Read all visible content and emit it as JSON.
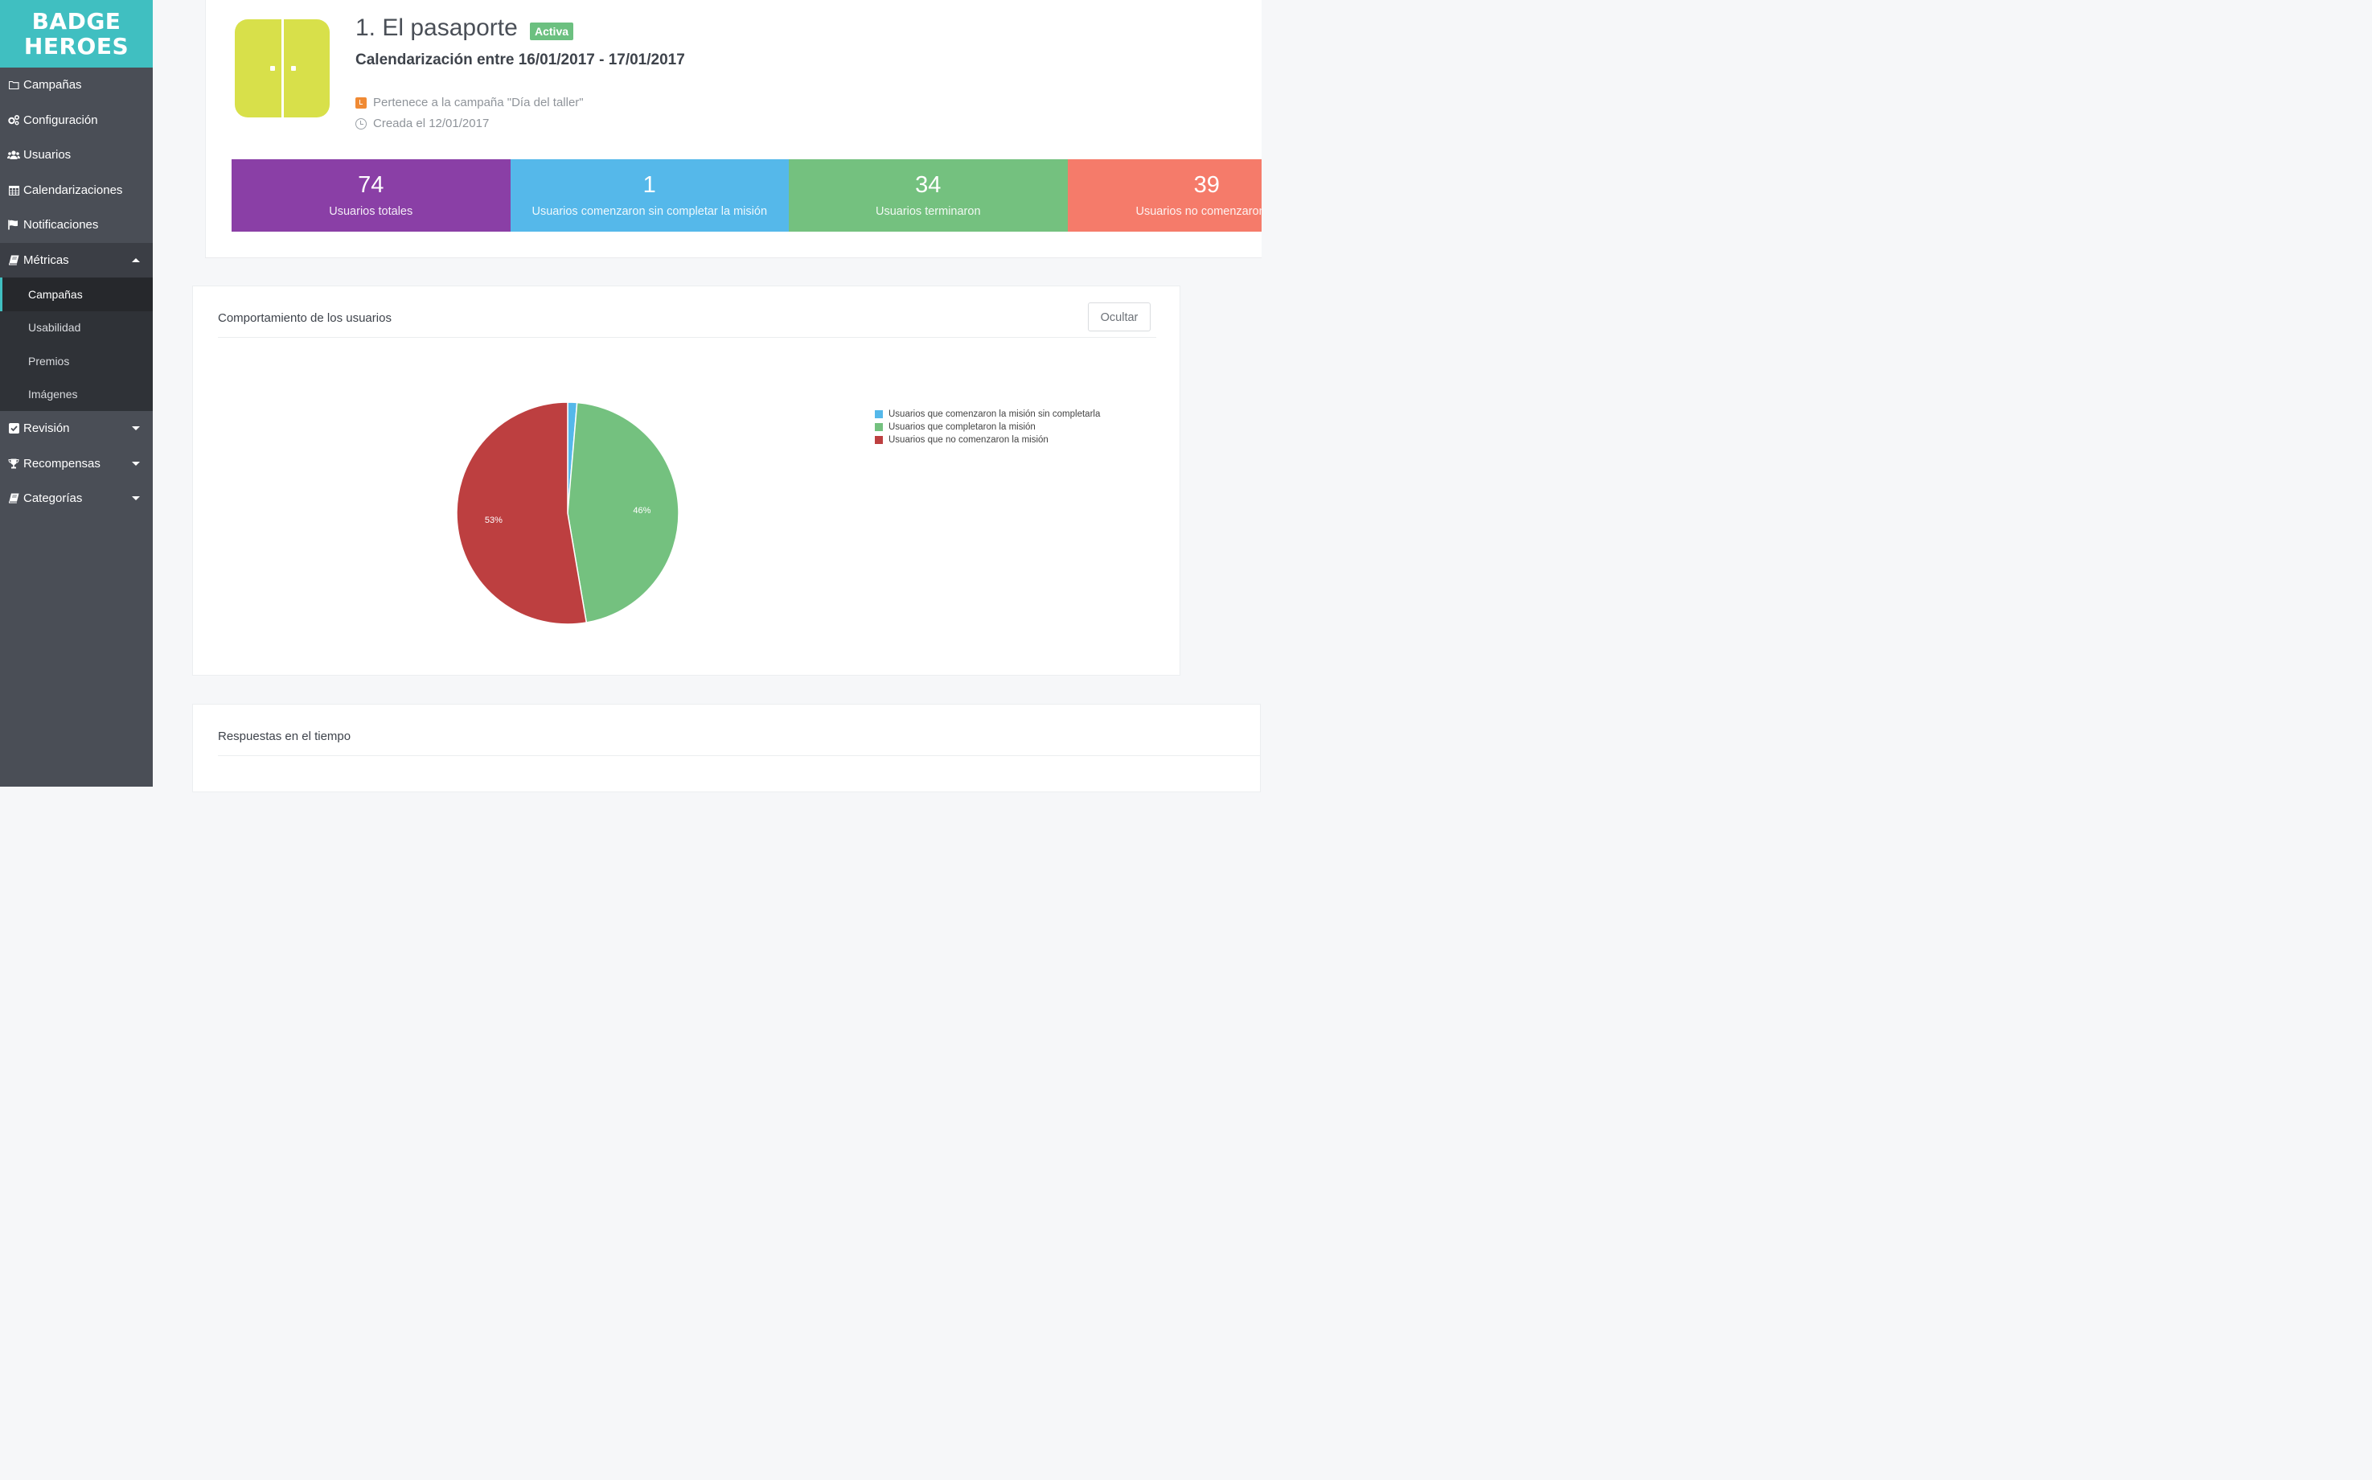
{
  "brand": {
    "line1": "BADGE",
    "line2": "HEROES",
    "color": "#40bfc1"
  },
  "sidebar": {
    "items": [
      {
        "label": "Campañas",
        "icon": "folder-icon"
      },
      {
        "label": "Configuración",
        "icon": "cogs-icon"
      },
      {
        "label": "Usuarios",
        "icon": "users-icon"
      },
      {
        "label": "Calendarizaciones",
        "icon": "calendar-icon"
      },
      {
        "label": "Notificaciones",
        "icon": "flag-icon"
      },
      {
        "label": "Métricas",
        "icon": "book-icon",
        "expanded": true
      },
      {
        "label": "Revisión",
        "icon": "check-square-icon"
      },
      {
        "label": "Recompensas",
        "icon": "trophy-icon"
      },
      {
        "label": "Categorías",
        "icon": "book-icon"
      }
    ],
    "metricas_submenu": [
      {
        "label": "Campañas",
        "active": true
      },
      {
        "label": "Usabilidad"
      },
      {
        "label": "Premios"
      },
      {
        "label": "Imágenes"
      }
    ]
  },
  "mission": {
    "title": "1. El pasaporte",
    "status": "Activa",
    "schedule": "Calendarización entre 16/01/2017 - 17/01/2017",
    "campaign": "Pertenece a la campaña \"Día del taller\"",
    "created": "Creada el 12/01/2017",
    "image_icon": "door-icon",
    "image_color": "#d8e04a"
  },
  "stats": [
    {
      "value": "74",
      "label": "Usuarios totales",
      "color": "#8a3fa6"
    },
    {
      "value": "1",
      "label": "Usuarios comenzaron sin completar la misión",
      "color": "#55b8ea"
    },
    {
      "value": "34",
      "label": "Usuarios terminaron",
      "color": "#74c17f"
    },
    {
      "value": "39",
      "label": "Usuarios no comenzaron la",
      "color": "#f57b6a"
    }
  ],
  "behavior_card": {
    "title": "Comportamiento de los usuarios",
    "hide_label": "Ocultar"
  },
  "time_card": {
    "title": "Respuestas en el tiempo"
  },
  "chart_data": {
    "type": "pie",
    "title": "",
    "slices": [
      {
        "name": "Usuarios que comenzaron la misión sin completarla",
        "value": 1,
        "label": "",
        "color": "#55b8ea"
      },
      {
        "name": "Usuarios que completaron la misión",
        "value": 34,
        "label": "46%",
        "color": "#74c17f"
      },
      {
        "name": "Usuarios que no comenzaron la misión",
        "value": 39,
        "label": "53%",
        "color": "#bd3f40"
      }
    ],
    "legend_position": "right"
  }
}
